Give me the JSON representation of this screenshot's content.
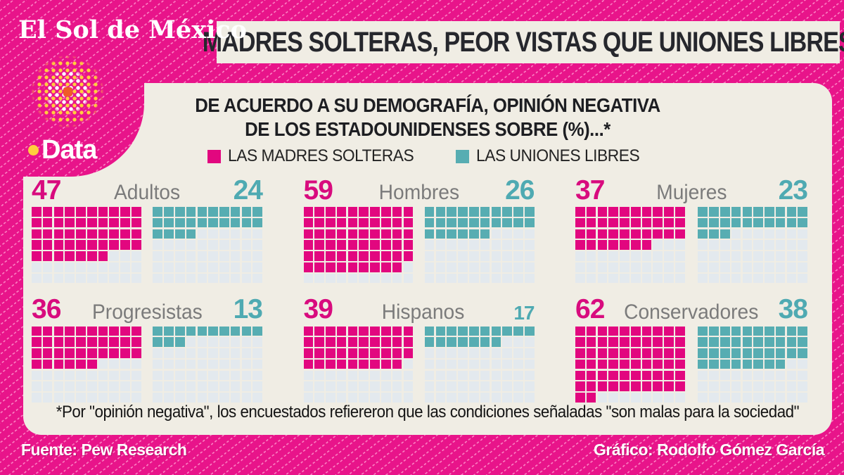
{
  "brand": {
    "name": "El Sol de México",
    "wordmark": "Data"
  },
  "headline": "MADRES SOLTERAS, PEOR VISTAS QUE UNIONES LIBRES",
  "panel": {
    "title_line1": "DE ACUERDO A SU DEMOGRAFÍA, OPINIÓN NEGATIVA",
    "title_line2": "DE LOS ESTADOUNIDENSES SOBRE (%)...*",
    "legend": [
      {
        "label": "LAS MADRES SOLTERAS",
        "color": "#e2077f"
      },
      {
        "label": "LAS UNIONES LIBRES",
        "color": "#57adb2"
      }
    ],
    "footnote": "*Por \"opinión negativa\", los encuestados refiereron que las condiciones señaladas \"son malas para la sociedad\""
  },
  "charts": [
    {
      "label": "Adultos",
      "madres": "47",
      "uniones": "24"
    },
    {
      "label": "Hombres",
      "madres": "59",
      "uniones": "26"
    },
    {
      "label": "Mujeres",
      "madres": "37",
      "uniones": "23"
    },
    {
      "label": "Progresistas",
      "madres": "36",
      "uniones": "13"
    },
    {
      "label": "Hispanos",
      "madres": "39",
      "uniones": "17",
      "uniones_small": true
    },
    {
      "label": "Conservadores",
      "madres": "62",
      "uniones": "38"
    }
  ],
  "chart_data": {
    "type": "waffle",
    "grid": {
      "columns": 10,
      "rows": 7,
      "unit_total": 70,
      "unit": "1 square = 1%"
    },
    "categories": [
      "Adultos",
      "Hombres",
      "Mujeres",
      "Progresistas",
      "Hispanos",
      "Conservadores"
    ],
    "series": [
      {
        "name": "LAS MADRES SOLTERAS",
        "color": "#e2077f",
        "values": [
          47,
          59,
          37,
          36,
          39,
          62
        ]
      },
      {
        "name": "LAS UNIONES LIBRES",
        "color": "#57adb2",
        "values": [
          24,
          26,
          23,
          13,
          17,
          38
        ]
      }
    ],
    "title": "DE ACUERDO A SU DEMOGRAFÍA, OPINIÓN NEGATIVA DE LOS ESTADOUNIDENSES SOBRE (%)...*",
    "legend_position": "top-center",
    "empty_cell_color": "#e3e9ee",
    "background": "#f0ede4"
  },
  "footer": {
    "source": "Fuente: Pew Research",
    "credit": "Gráfico: Rodolfo Gómez García"
  },
  "colors": {
    "background_pink": "#e8148a",
    "panel_cream": "#f0ede4",
    "madres_pink": "#e2077f",
    "uniones_teal": "#57adb2",
    "label_gray": "#7b7b7b",
    "ink": "#26272d"
  }
}
